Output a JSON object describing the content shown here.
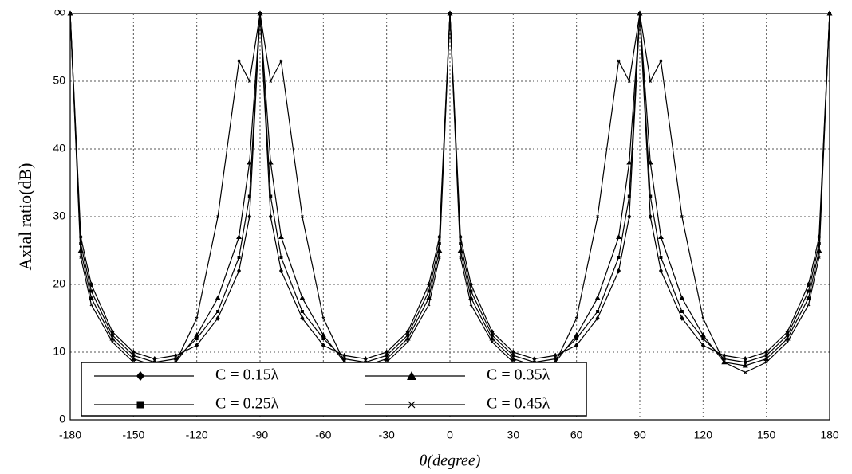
{
  "chart_data": {
    "type": "line",
    "xlabel": "θ(degree)",
    "ylabel": "Axial ratio(dB)",
    "x": [
      -180,
      -175,
      -170,
      -160,
      -150,
      -140,
      -130,
      -120,
      -110,
      -100,
      -95,
      -90,
      -85,
      -80,
      -70,
      -60,
      -50,
      -40,
      -30,
      -20,
      -10,
      -5,
      0,
      5,
      10,
      20,
      30,
      40,
      50,
      60,
      70,
      80,
      85,
      90,
      95,
      100,
      110,
      120,
      130,
      140,
      150,
      160,
      170,
      175,
      180
    ],
    "series": [
      {
        "name": "C = 0.15λ",
        "color": "#000000",
        "marker": "diamond",
        "values": [
          60,
          27,
          20,
          13,
          10,
          9,
          9.5,
          11,
          15,
          22,
          30,
          60,
          30,
          22,
          15,
          11,
          9.5,
          9,
          10,
          13,
          20,
          27,
          60,
          27,
          20,
          13,
          10,
          9,
          9.5,
          11,
          15,
          22,
          30,
          60,
          30,
          22,
          15,
          11,
          9.5,
          9,
          10,
          13,
          20,
          27,
          60
        ]
      },
      {
        "name": "C = 0.25λ",
        "color": "#000000",
        "marker": "square",
        "values": [
          60,
          26,
          19,
          12.5,
          9.5,
          8.5,
          9,
          12,
          16,
          24,
          33,
          60,
          33,
          24,
          16,
          12,
          9,
          8.5,
          9.5,
          12.5,
          19,
          26,
          60,
          26,
          19,
          12.5,
          9.5,
          8.5,
          9,
          12,
          16,
          24,
          33,
          60,
          33,
          24,
          16,
          12,
          9,
          8.5,
          9.5,
          12.5,
          19,
          26,
          60
        ]
      },
      {
        "name": "C = 0.35λ",
        "color": "#000000",
        "marker": "triangle",
        "values": [
          60,
          25,
          18,
          12,
          9,
          8,
          8.5,
          12.5,
          18,
          27,
          38,
          60,
          38,
          27,
          18,
          12.5,
          8.5,
          8,
          9,
          12,
          18,
          25,
          60,
          25,
          18,
          12,
          9,
          8,
          8.5,
          12.5,
          18,
          27,
          38,
          60,
          38,
          27,
          18,
          12.5,
          8.5,
          8,
          9,
          12,
          18,
          25,
          60
        ]
      },
      {
        "name": "C = 0.45λ",
        "color": "#000000",
        "marker": "cross",
        "values": [
          60,
          24,
          17,
          11.5,
          8.5,
          7,
          8.5,
          15,
          30,
          53,
          50,
          60,
          50,
          53,
          30,
          15,
          8.5,
          7,
          8.5,
          11.5,
          17,
          24,
          60,
          24,
          17,
          11.5,
          8.5,
          7,
          8.5,
          15,
          30,
          53,
          50,
          60,
          50,
          53,
          30,
          15,
          8.5,
          7,
          8.5,
          11.5,
          17,
          24,
          60
        ]
      }
    ],
    "xlim": [
      -180,
      180
    ],
    "xticks": [
      -180,
      -150,
      -120,
      -90,
      -60,
      -30,
      0,
      30,
      60,
      90,
      120,
      150,
      180
    ],
    "ylim": [
      0,
      60
    ],
    "yticks": [
      0,
      10,
      20,
      30,
      40,
      50,
      {
        "value": 60,
        "label": "∞"
      }
    ],
    "grid": true,
    "legend": "lower-left"
  }
}
